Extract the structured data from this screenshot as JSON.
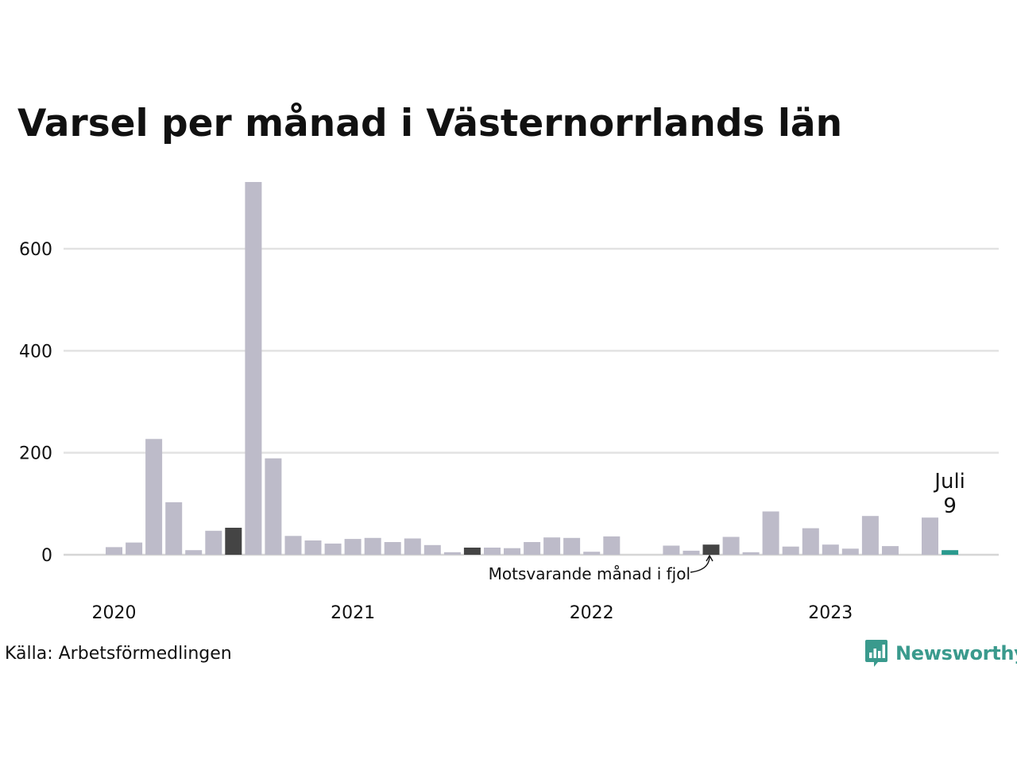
{
  "chart_data": {
    "type": "bar",
    "title": "Varsel per månad i Västernorrlands län",
    "source": "Källa: Arbetsförmedlingen",
    "brand": "Newsworthy",
    "ylim": [
      0,
      730
    ],
    "yticks": [
      0,
      200,
      400,
      600
    ],
    "x_labels": [
      "2020",
      "2021",
      "2022",
      "2023"
    ],
    "x_label_index": [
      0,
      12,
      24,
      36
    ],
    "grid": true,
    "colors": {
      "default": "#bdbbc9",
      "last_year": "#444444",
      "current": "#2a9a8e",
      "grid": "#e2e2e2"
    },
    "highlight_last_year_indices": [
      6,
      18,
      30
    ],
    "current_index": 42,
    "current_label": {
      "month": "Juli",
      "value": "9"
    },
    "annotation": "Motsvarande månad i fjol",
    "series": [
      {
        "values": [
          15,
          24,
          227,
          103,
          9,
          47,
          53,
          731,
          189,
          37,
          28,
          22,
          31,
          33,
          25,
          32,
          19,
          5,
          14,
          14,
          13,
          25,
          34,
          33,
          6,
          36,
          0,
          0,
          18,
          8,
          20,
          35,
          5,
          85,
          16,
          52,
          20,
          12,
          76,
          17,
          0,
          73,
          9
        ]
      }
    ]
  }
}
